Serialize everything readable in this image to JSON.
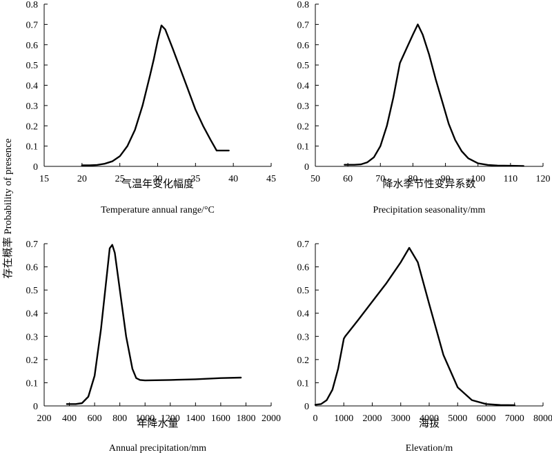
{
  "figure": {
    "ylabel": "存在概率 Probability of presence"
  },
  "chart_data": [
    {
      "type": "line",
      "xlabel_cn": "气温年变化幅度",
      "xlabel_en": "Temperature annual range/°C",
      "xlim": [
        15,
        45
      ],
      "ylim": [
        0,
        0.8
      ],
      "xticks": [
        "15",
        "20",
        "25",
        "30",
        "35",
        "40",
        "45"
      ],
      "yticks": [
        "0",
        "0.1",
        "0.2",
        "0.3",
        "0.4",
        "0.5",
        "0.6",
        "0.7",
        "0.8"
      ],
      "series": [
        {
          "x": [
            20,
            21,
            22,
            23,
            24,
            25,
            26,
            27,
            28,
            29,
            29.5,
            30,
            30.5,
            31,
            32,
            33,
            34,
            35,
            36,
            37,
            37.8,
            38.5,
            39.4
          ],
          "y": [
            0.005,
            0.005,
            0.007,
            0.013,
            0.025,
            0.05,
            0.1,
            0.18,
            0.3,
            0.45,
            0.53,
            0.62,
            0.695,
            0.675,
            0.58,
            0.48,
            0.38,
            0.28,
            0.2,
            0.13,
            0.078,
            0.078,
            0.078
          ]
        }
      ]
    },
    {
      "type": "line",
      "xlabel_cn": "降水季节性变异系数",
      "xlabel_en": "Precipitation seasonality/mm",
      "xlim": [
        50,
        120
      ],
      "ylim": [
        0,
        0.8
      ],
      "xticks": [
        "50",
        "60",
        "70",
        "80",
        "90",
        "100",
        "110",
        "120"
      ],
      "yticks": [
        "0",
        "0.1",
        "0.2",
        "0.3",
        "0.4",
        "0.5",
        "0.6",
        "0.7",
        "0.8"
      ],
      "series": [
        {
          "x": [
            59,
            62,
            64,
            66,
            68,
            70,
            72,
            74,
            76,
            78,
            80,
            81.5,
            83,
            85,
            87,
            89,
            91,
            93,
            95,
            97,
            100,
            103,
            106,
            110,
            114
          ],
          "y": [
            0.008,
            0.008,
            0.01,
            0.02,
            0.045,
            0.1,
            0.2,
            0.34,
            0.51,
            0.58,
            0.65,
            0.7,
            0.65,
            0.55,
            0.43,
            0.32,
            0.21,
            0.13,
            0.075,
            0.04,
            0.015,
            0.007,
            0.004,
            0.003,
            0.002
          ]
        }
      ]
    },
    {
      "type": "line",
      "xlabel_cn": "年降水量",
      "xlabel_en": "Annual precipitation/mm",
      "xlim": [
        200,
        2000
      ],
      "ylim": [
        0,
        0.7
      ],
      "xticks": [
        "200",
        "400",
        "600",
        "800",
        "1000",
        "1200",
        "1400",
        "1600",
        "1800",
        "2000"
      ],
      "yticks": [
        "0",
        "0.1",
        "0.2",
        "0.3",
        "0.4",
        "0.5",
        "0.6",
        "0.7"
      ],
      "series": [
        {
          "x": [
            380,
            450,
            500,
            550,
            600,
            650,
            700,
            720,
            740,
            760,
            800,
            850,
            900,
            930,
            960,
            1000,
            1200,
            1400,
            1600,
            1760
          ],
          "y": [
            0.008,
            0.008,
            0.012,
            0.04,
            0.13,
            0.33,
            0.58,
            0.68,
            0.695,
            0.66,
            0.5,
            0.3,
            0.16,
            0.12,
            0.112,
            0.11,
            0.112,
            0.115,
            0.12,
            0.122
          ]
        }
      ]
    },
    {
      "type": "line",
      "xlabel_cn": "海拔",
      "xlabel_en": "Elevation/m",
      "xlim": [
        0,
        8000
      ],
      "ylim": [
        0,
        0.7
      ],
      "xticks": [
        "0",
        "1000",
        "2000",
        "3000",
        "4000",
        "5000",
        "6000",
        "7000",
        "8000"
      ],
      "yticks": [
        "0",
        "0.1",
        "0.2",
        "0.3",
        "0.4",
        "0.5",
        "0.6",
        "0.7"
      ],
      "series": [
        {
          "x": [
            0,
            200,
            400,
            600,
            800,
            1000,
            1050,
            1500,
            2000,
            2500,
            3000,
            3300,
            3600,
            4000,
            4500,
            5000,
            5500,
            6000,
            6500,
            7000
          ],
          "y": [
            0.005,
            0.008,
            0.025,
            0.07,
            0.16,
            0.29,
            0.3,
            0.37,
            0.45,
            0.53,
            0.62,
            0.682,
            0.62,
            0.44,
            0.22,
            0.08,
            0.025,
            0.008,
            0.004,
            0.003
          ]
        }
      ]
    }
  ]
}
